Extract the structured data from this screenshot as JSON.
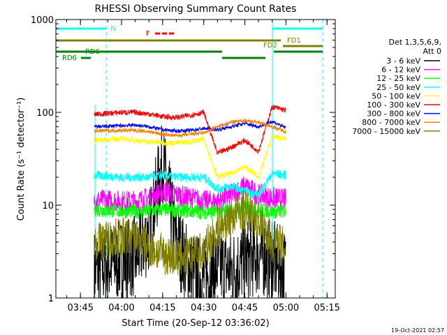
{
  "chart_data": {
    "type": "line",
    "title": "RHESSI Observing Summary Count Rates",
    "xlabel": "Start Time (20-Sep-12 03:36:02)",
    "ylabel": "Count Rate (s⁻¹ detector⁻¹)",
    "y_scale": "log",
    "ylim": [
      1,
      1000
    ],
    "xlim": [
      "03:36:02",
      "05:18:00"
    ],
    "x_ticks": [
      "03:45",
      "04:00",
      "04:15",
      "04:30",
      "04:45",
      "05:00",
      "05:15"
    ],
    "y_ticks": [
      "1",
      "10",
      "100",
      "1000"
    ],
    "legend_title": [
      "Det 1,3,5,6,9,",
      "Att 0"
    ],
    "legend_position": "right",
    "timestamp": "19-Oct-2021 02:57",
    "series": [
      {
        "name": "3 - 6 keV",
        "color": "#000000",
        "x": [
          "03:50",
          "04:00",
          "04:05",
          "04:10",
          "04:15",
          "04:20",
          "04:25",
          "04:30",
          "04:35",
          "04:40",
          "04:45",
          "04:50",
          "04:55",
          "05:00"
        ],
        "values": [
          2,
          2.6,
          2.8,
          5,
          30,
          4,
          2,
          1.6,
          2.2,
          2,
          2.5,
          3,
          2.5,
          2
        ]
      },
      {
        "name": "6 - 12 keV",
        "color": "#ff00ff",
        "x": [
          "03:50",
          "04:00",
          "04:05",
          "04:10",
          "04:15",
          "04:20",
          "04:25",
          "04:30",
          "04:35",
          "04:40",
          "04:45",
          "04:50",
          "04:55",
          "05:00"
        ],
        "values": [
          11.5,
          11,
          11,
          12,
          14,
          13,
          12,
          11,
          11,
          13,
          16,
          13,
          12,
          11.5
        ]
      },
      {
        "name": "12 - 25 keV",
        "color": "#00ff00",
        "x": [
          "03:50",
          "04:00",
          "04:05",
          "04:10",
          "04:15",
          "04:20",
          "04:25",
          "04:30",
          "04:35",
          "04:40",
          "04:45",
          "04:50",
          "04:55",
          "05:00"
        ],
        "values": [
          9,
          8.6,
          8.5,
          8.7,
          9,
          8.8,
          8.6,
          8.4,
          8.5,
          8.8,
          9.3,
          8.8,
          8.6,
          8.5
        ]
      },
      {
        "name": "25 - 50 keV",
        "color": "#00ffff",
        "x": [
          "03:50",
          "04:00",
          "04:05",
          "04:10",
          "04:15",
          "04:20",
          "04:25",
          "04:30",
          "04:35",
          "04:40",
          "04:45",
          "04:50",
          "04:55",
          "05:00"
        ],
        "values": [
          21,
          20,
          20,
          20,
          21,
          20,
          20,
          20,
          15,
          16,
          14,
          13,
          22,
          21
        ]
      },
      {
        "name": "50 - 100 keV",
        "color": "#ffff00",
        "x": [
          "03:50",
          "04:00",
          "04:05",
          "04:10",
          "04:15",
          "04:20",
          "04:25",
          "04:30",
          "04:35",
          "04:40",
          "04:45",
          "04:50",
          "04:55",
          "05:00"
        ],
        "values": [
          50,
          52,
          50,
          48,
          47,
          47,
          48,
          52,
          20,
          22,
          26,
          20,
          55,
          52
        ]
      },
      {
        "name": "100 - 300 keV",
        "color": "#ff0000",
        "x": [
          "03:50",
          "04:00",
          "04:05",
          "04:10",
          "04:15",
          "04:20",
          "04:25",
          "04:30",
          "04:35",
          "04:40",
          "04:45",
          "04:50",
          "04:55",
          "05:00"
        ],
        "values": [
          95,
          100,
          100,
          96,
          90,
          88,
          93,
          100,
          36,
          42,
          50,
          38,
          115,
          105
        ]
      },
      {
        "name": "300 - 800 keV",
        "color": "#0000ff",
        "x": [
          "03:50",
          "04:00",
          "04:05",
          "04:10",
          "04:15",
          "04:20",
          "04:25",
          "04:30",
          "04:35",
          "04:40",
          "04:45",
          "04:50",
          "04:55",
          "05:00"
        ],
        "values": [
          70,
          72,
          73,
          70,
          65,
          63,
          64,
          67,
          65,
          70,
          76,
          70,
          80,
          68
        ]
      },
      {
        "name": "800 - 7000 keV",
        "color": "#ff8000",
        "x": [
          "03:50",
          "04:00",
          "04:05",
          "04:10",
          "04:15",
          "04:20",
          "04:25",
          "04:30",
          "04:35",
          "04:40",
          "04:45",
          "04:50",
          "04:55",
          "05:00"
        ],
        "values": [
          63,
          64,
          64,
          62,
          58,
          56,
          58,
          60,
          70,
          78,
          82,
          78,
          70,
          62
        ]
      },
      {
        "name": "7000 - 15000 keV",
        "color": "#808000",
        "x": [
          "03:50",
          "04:00",
          "04:05",
          "04:10",
          "04:15",
          "04:20",
          "04:25",
          "04:30",
          "04:35",
          "04:40",
          "04:45",
          "04:50",
          "04:55",
          "05:00"
        ],
        "values": [
          4,
          4.5,
          4.5,
          3.5,
          3,
          2.7,
          2.8,
          3.2,
          5.5,
          7.5,
          9,
          7,
          4,
          3.5
        ]
      }
    ],
    "annotations": [
      {
        "label": "N",
        "color": "#00ffff"
      },
      {
        "label": "F",
        "color": "#ff0000"
      },
      {
        "label": "FD1",
        "color": "#808000"
      },
      {
        "label": "FD2",
        "color": "#808000"
      },
      {
        "label": "RD6",
        "color": "#008000"
      },
      {
        "label": "RD6",
        "color": "#008000"
      }
    ]
  }
}
